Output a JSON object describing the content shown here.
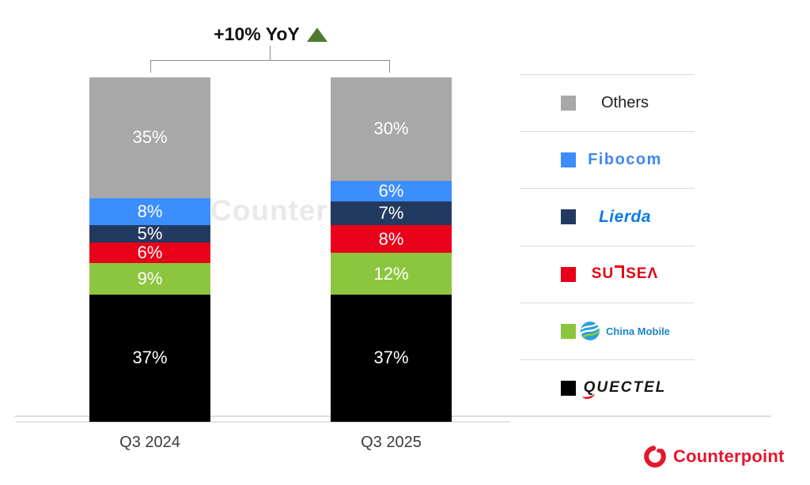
{
  "chart_data": {
    "type": "stacked-bar",
    "title": "",
    "annotation": "+10% YoY",
    "annotation_arrow": "up-triangle",
    "annotation_arrow_color": "#50792e",
    "categories": [
      "Q3 2024",
      "Q3 2025"
    ],
    "series": [
      {
        "name": "Others",
        "color": "#a8a8a8",
        "values": [
          35,
          30
        ]
      },
      {
        "name": "Fibocom",
        "color": "#3b8efc",
        "values": [
          8,
          6
        ]
      },
      {
        "name": "Lierda",
        "color": "#233a60",
        "values": [
          5,
          7
        ]
      },
      {
        "name": "Sunsea",
        "color": "#e90019",
        "values": [
          6,
          8
        ]
      },
      {
        "name": "China Mobile",
        "color": "#8cc63e",
        "values": [
          9,
          12
        ]
      },
      {
        "name": "Quectel",
        "color": "#000000",
        "values": [
          37,
          37
        ]
      }
    ],
    "series_order_note": "listed top-to-bottom as displayed in each stacked bar",
    "value_suffix": "%",
    "ylim": [
      0,
      100
    ],
    "grid": false,
    "legend_position": "right",
    "label_color": "#ffffff"
  },
  "watermark": "Counterpoint",
  "legend": {
    "items": [
      {
        "name": "Others",
        "text": "Others",
        "logo_color": "#1f1f1f"
      },
      {
        "name": "Fibocom",
        "text": "Fibocom",
        "logo_color": "#3e87f2"
      },
      {
        "name": "Lierda",
        "text": "Lierda",
        "logo_color": "#0d79e8"
      },
      {
        "name": "SUNSEA",
        "text_pre": "SU",
        "text_post": "SEΛ",
        "logo_color": "#e60013"
      },
      {
        "name": "China Mobile",
        "text": "China Mobile",
        "logo_color": "#1b86c8"
      },
      {
        "name": "QUECTEL",
        "text": "QUECTEL",
        "logo_color": "#151515"
      }
    ]
  },
  "footer": {
    "brand": "Counterpoint",
    "brand_color": "#e5172c"
  }
}
